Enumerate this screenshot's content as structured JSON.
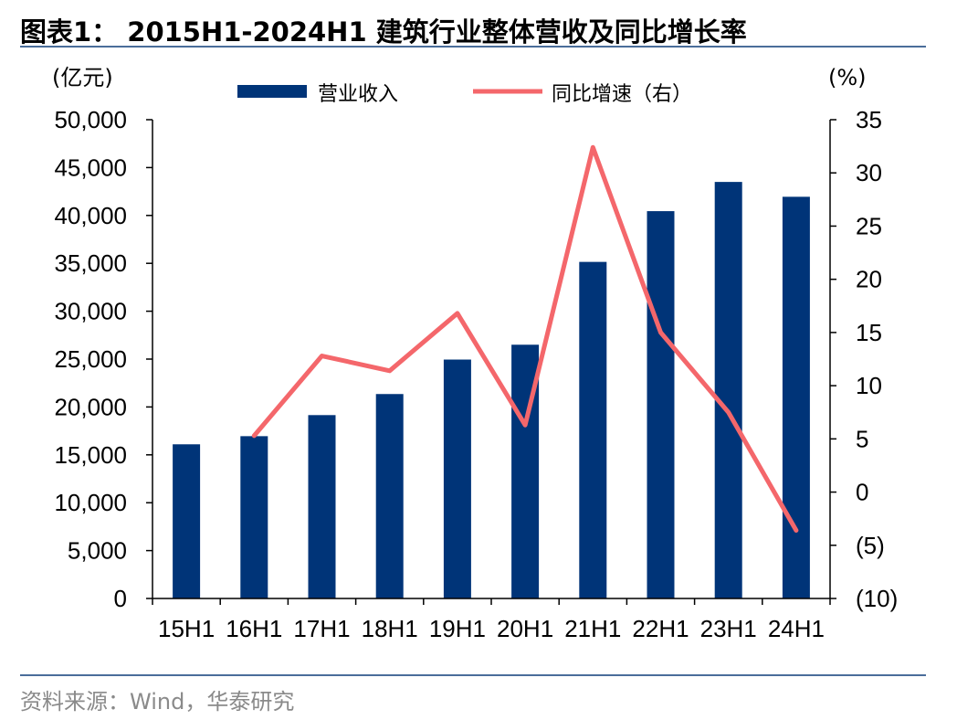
{
  "title": "图表1：  2015H1-2024H1 建筑行业整体营收及同比增长率",
  "source": "资料来源：Wind，华泰研究",
  "colors": {
    "bar": "#003478",
    "line": "#f4676b",
    "rule": "#4a6d9a"
  },
  "chart_data": {
    "type": "bar",
    "categories": [
      "15H1",
      "16H1",
      "17H1",
      "18H1",
      "19H1",
      "20H1",
      "21H1",
      "22H1",
      "23H1",
      "24H1"
    ],
    "series": [
      {
        "name": "营业收入",
        "type": "bar",
        "axis": "left",
        "values": [
          16100,
          16950,
          19150,
          21350,
          24950,
          26500,
          35150,
          40450,
          43500,
          41950
        ]
      },
      {
        "name": "同比增速（右）",
        "type": "line",
        "axis": "right",
        "values": [
          null,
          5.3,
          12.8,
          11.4,
          16.8,
          6.3,
          32.4,
          15.0,
          7.5,
          -3.6
        ]
      }
    ],
    "left_axis": {
      "unit": "(亿元)",
      "ylim": [
        0,
        50000
      ],
      "ticks": [
        0,
        5000,
        10000,
        15000,
        20000,
        25000,
        30000,
        35000,
        40000,
        45000,
        50000
      ],
      "tick_labels": [
        "0",
        "5,000",
        "10,000",
        "15,000",
        "20,000",
        "25,000",
        "30,000",
        "35,000",
        "40,000",
        "45,000",
        "50,000"
      ]
    },
    "right_axis": {
      "unit": "(%)",
      "ylim": [
        -10,
        35
      ],
      "ticks": [
        -10,
        -5,
        0,
        5,
        10,
        15,
        20,
        25,
        30,
        35
      ],
      "tick_labels": [
        "(10)",
        "(5)",
        "0",
        "5",
        "10",
        "15",
        "20",
        "25",
        "30",
        "35"
      ]
    },
    "grid": false,
    "legend_position": "top-center"
  }
}
